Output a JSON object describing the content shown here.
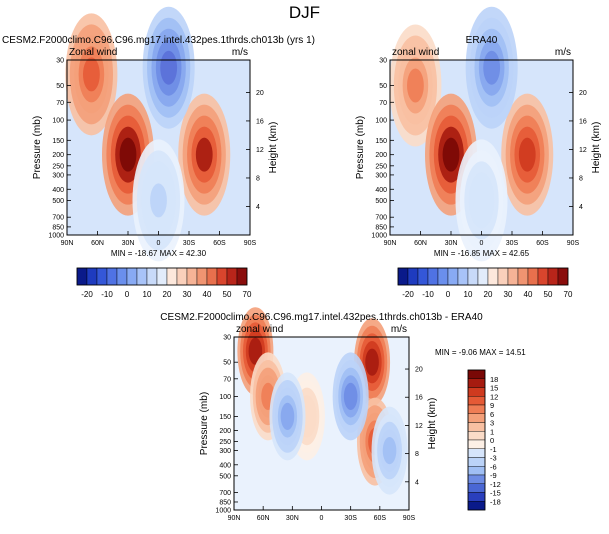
{
  "page_title": "DJF",
  "colors": {
    "neg": [
      "#4a54c2",
      "#5a70d8",
      "#6e8ce4",
      "#86a6ee",
      "#a0bff4",
      "#bbd3f8",
      "#d6e5fb",
      "#eaf2fd"
    ],
    "pos": [
      "#fdf0e6",
      "#fbdcc8",
      "#f8c0a2",
      "#f4a07a",
      "#ef7d55",
      "#e55a36",
      "#cf3a1f",
      "#a61b10",
      "#7a0806"
    ],
    "panel_ab_levels": [
      "-20",
      "-10",
      "0",
      "10",
      "20",
      "30",
      "40",
      "50",
      "70"
    ],
    "panel_ab_swatches": [
      "#0a1a8a",
      "#1e3bbf",
      "#3457d8",
      "#4f72e4",
      "#6a8fed",
      "#88aaf4",
      "#a8c3f8",
      "#c8daf9",
      "#e2ecfb",
      "#fde8dc",
      "#fad0bb",
      "#f6b396",
      "#f09471",
      "#e8704d",
      "#d9452d",
      "#b8251a",
      "#8a0d0c"
    ],
    "panel_c_levels": [
      "18",
      "15",
      "12",
      "9",
      "6",
      "3",
      "1",
      "0",
      "-1",
      "-3",
      "-6",
      "-9",
      "-12",
      "-15",
      "-18"
    ],
    "panel_c_swatches": [
      "#7a0806",
      "#a61b10",
      "#cf3a1f",
      "#e55a36",
      "#ef7d55",
      "#f4a07a",
      "#f8c0a2",
      "#fbdcc8",
      "#fdf0e6",
      "#d6e5fb",
      "#bbd3f8",
      "#a0bff4",
      "#6e8ce4",
      "#4a67d4",
      "#2a3fbd",
      "#0a1a8a"
    ]
  },
  "chart_data": [
    {
      "type": "heatmap",
      "title": "CESM2.F2000climo.C96.C96.mg17.intel.432pes.1thrds.ch013b (yrs 1)",
      "left_label": "Zonal wind",
      "right_label": "m/s",
      "xlabel": "",
      "ylabel": "Pressure (mb)",
      "y2label": "Height (km)",
      "x_ticks": [
        "90N",
        "60N",
        "30N",
        "0",
        "30S",
        "60S",
        "90S"
      ],
      "y_ticks": [
        "30",
        "50",
        "70",
        "100",
        "150",
        "200",
        "250",
        "300",
        "400",
        "500",
        "700",
        "850",
        "1000"
      ],
      "y2_ticks": [
        "20",
        "16",
        "12",
        "8",
        "4"
      ],
      "stats": "MIN = -18.67   MAX = 42.30",
      "features": [
        {
          "lat": 66,
          "pressure": 40,
          "value": 28
        },
        {
          "lat": 30,
          "pressure": 200,
          "value": 42
        },
        {
          "lat": -45,
          "pressure": 200,
          "value": 35
        },
        {
          "lat": -10,
          "pressure": 35,
          "value": -18
        },
        {
          "lat": 0,
          "pressure": 500,
          "value": -6
        }
      ]
    },
    {
      "type": "heatmap",
      "title": "ERA40",
      "left_label": "zonal wind",
      "right_label": "m/s",
      "xlabel": "",
      "ylabel": "Pressure (mb)",
      "y2label": "Height (km)",
      "x_ticks": [
        "90N",
        "60N",
        "30N",
        "0",
        "30S",
        "60S",
        "90S"
      ],
      "y_ticks": [
        "30",
        "50",
        "70",
        "100",
        "150",
        "200",
        "250",
        "300",
        "400",
        "500",
        "700",
        "850",
        "1000"
      ],
      "y2_ticks": [
        "20",
        "16",
        "12",
        "8",
        "4"
      ],
      "stats": "MIN = -16.85   MAX = 42.65",
      "features": [
        {
          "lat": 65,
          "pressure": 50,
          "value": 20
        },
        {
          "lat": 30,
          "pressure": 200,
          "value": 42
        },
        {
          "lat": -45,
          "pressure": 200,
          "value": 33
        },
        {
          "lat": -10,
          "pressure": 35,
          "value": -16
        },
        {
          "lat": 0,
          "pressure": 500,
          "value": -5
        }
      ]
    },
    {
      "type": "heatmap",
      "title": "CESM2.F2000climo.C96.C96.mg17.intel.432pes.1thrds.ch013b - ERA40",
      "left_label": "zonal wind",
      "right_label": "m/s",
      "xlabel": "",
      "ylabel": "Pressure (mb)",
      "y2label": "Height (km)",
      "x_ticks": [
        "90N",
        "60N",
        "30N",
        "0",
        "30S",
        "60S",
        "90S"
      ],
      "y_ticks": [
        "30",
        "50",
        "70",
        "100",
        "150",
        "200",
        "250",
        "300",
        "400",
        "500",
        "700",
        "850",
        "1000"
      ],
      "y2_ticks": [
        "20",
        "16",
        "12",
        "8",
        "4"
      ],
      "stats": "MIN = -9.06   MAX = 14.51",
      "features": [
        {
          "lat": 68,
          "pressure": 40,
          "value": 14
        },
        {
          "lat": 55,
          "pressure": 100,
          "value": 8
        },
        {
          "lat": -52,
          "pressure": 50,
          "value": 14
        },
        {
          "lat": -55,
          "pressure": 250,
          "value": 10
        },
        {
          "lat": 15,
          "pressure": 150,
          "value": 3
        },
        {
          "lat": 35,
          "pressure": 150,
          "value": -6
        },
        {
          "lat": -30,
          "pressure": 100,
          "value": -8
        },
        {
          "lat": -70,
          "pressure": 300,
          "value": -5
        }
      ]
    }
  ]
}
